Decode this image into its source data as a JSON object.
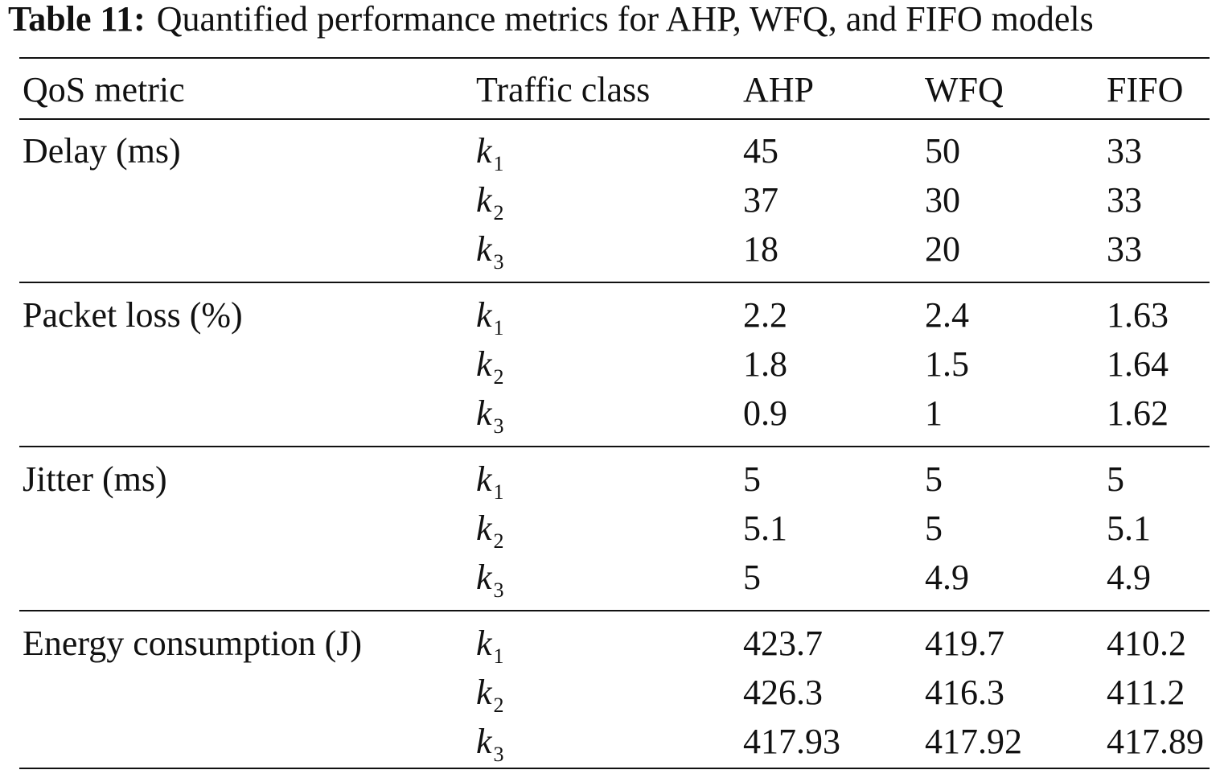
{
  "caption": {
    "label": "Table 11:",
    "text": "Quantified performance metrics for AHP, WFQ, and FIFO models"
  },
  "header": {
    "metric": "QoS metric",
    "traffic_class": "Traffic class",
    "ahp": "AHP",
    "wfq": "WFQ",
    "fifo": "FIFO"
  },
  "groups": [
    {
      "metric": "Delay (ms)",
      "rows": [
        {
          "k": "k",
          "sub": "1",
          "ahp": "45",
          "wfq": "50",
          "fifo": "33"
        },
        {
          "k": "k",
          "sub": "2",
          "ahp": "37",
          "wfq": "30",
          "fifo": "33"
        },
        {
          "k": "k",
          "sub": "3",
          "ahp": "18",
          "wfq": "20",
          "fifo": "33"
        }
      ]
    },
    {
      "metric": "Packet loss (%)",
      "rows": [
        {
          "k": "k",
          "sub": "1",
          "ahp": "2.2",
          "wfq": "2.4",
          "fifo": "1.63"
        },
        {
          "k": "k",
          "sub": "2",
          "ahp": "1.8",
          "wfq": "1.5",
          "fifo": "1.64"
        },
        {
          "k": "k",
          "sub": "3",
          "ahp": "0.9",
          "wfq": "1",
          "fifo": "1.62"
        }
      ]
    },
    {
      "metric": "Jitter (ms)",
      "rows": [
        {
          "k": "k",
          "sub": "1",
          "ahp": "5",
          "wfq": "5",
          "fifo": "5"
        },
        {
          "k": "k",
          "sub": "2",
          "ahp": "5.1",
          "wfq": "5",
          "fifo": "5.1"
        },
        {
          "k": "k",
          "sub": "3",
          "ahp": "5",
          "wfq": "4.9",
          "fifo": "4.9"
        }
      ]
    },
    {
      "metric": "Energy consumption (J)",
      "rows": [
        {
          "k": "k",
          "sub": "1",
          "ahp": "423.7",
          "wfq": "419.7",
          "fifo": "410.2"
        },
        {
          "k": "k",
          "sub": "2",
          "ahp": "426.3",
          "wfq": "416.3",
          "fifo": "411.2"
        },
        {
          "k": "k",
          "sub": "3",
          "ahp": "417.93",
          "wfq": "417.92",
          "fifo": "417.89"
        }
      ]
    }
  ]
}
